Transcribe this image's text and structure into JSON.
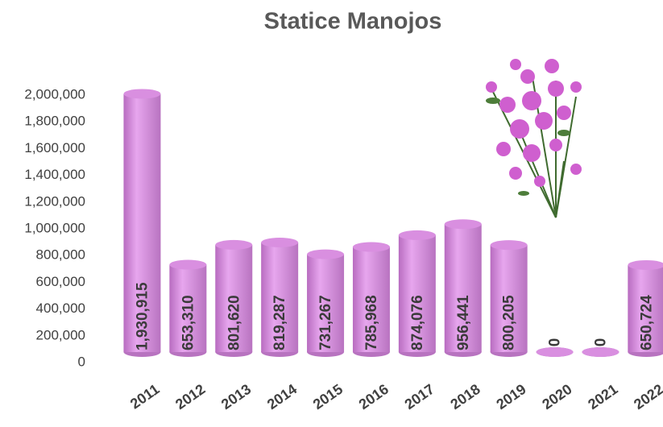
{
  "chart_data": {
    "type": "bar",
    "title": "Statice Manojos",
    "categories": [
      "2011",
      "2012",
      "2013",
      "2014",
      "2015",
      "2016",
      "2017",
      "2018",
      "2019",
      "2020",
      "2021",
      "2022"
    ],
    "values": [
      1930915,
      653310,
      801620,
      819287,
      731267,
      785968,
      874076,
      956441,
      800205,
      0,
      0,
      650724
    ],
    "value_labels": [
      "1,930,915",
      "653,310",
      "801,620",
      "819,287",
      "731,267",
      "785,968",
      "874,076",
      "956,441",
      "800,205",
      "0",
      "0",
      "650,724"
    ],
    "color": "#d98fe0",
    "ylim": [
      0,
      2000000
    ],
    "yticks": [
      0,
      {
        "value": 200000,
        "label": "200,000"
      },
      {
        "value": 400000,
        "label": "400,000"
      },
      {
        "value": 600000,
        "label": "600,000"
      },
      {
        "value": 800000,
        "label": "800,000"
      },
      {
        "value": 1000000,
        "label": "1,000,000"
      },
      {
        "value": 1200000,
        "label": "1,200,000"
      },
      {
        "value": 1400000,
        "label": "1,400,000"
      },
      {
        "value": 1600000,
        "label": "1,600,000"
      },
      {
        "value": 1800000,
        "label": "1,800,000"
      },
      {
        "value": 2000000,
        "label": "2,000,000"
      }
    ],
    "grid": false
  }
}
